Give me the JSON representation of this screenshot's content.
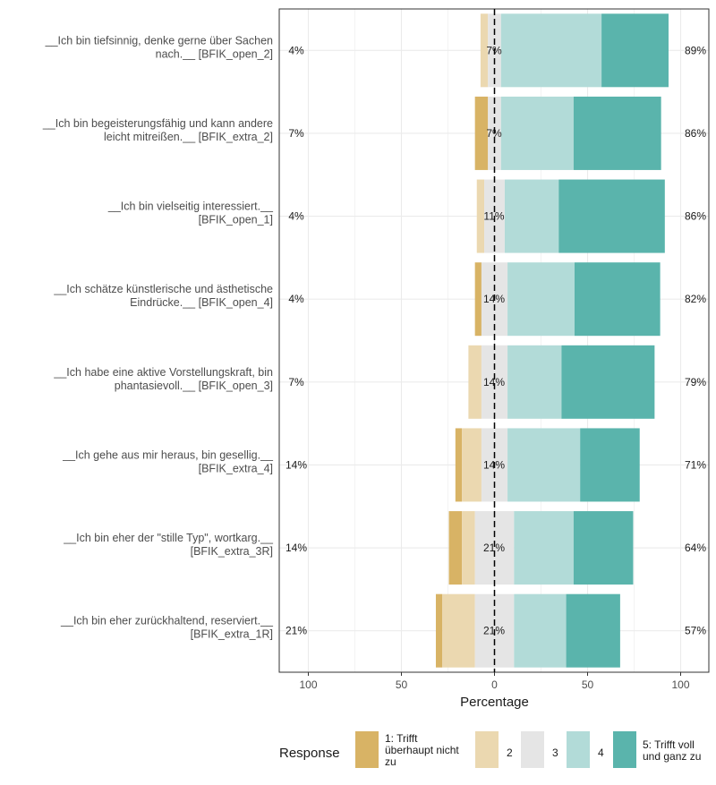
{
  "chart_data": {
    "type": "bar",
    "subtype": "diverging-stacked-likert",
    "xlabel": "Percentage",
    "xlim": [
      -115,
      115
    ],
    "x_ticks": [
      -100,
      -50,
      0,
      50,
      100
    ],
    "x_tick_labels": [
      "100",
      "50",
      "0",
      "50",
      "100"
    ],
    "grid": true,
    "legend": {
      "title": "Response",
      "position": "bottom",
      "levels": [
        {
          "label_lines": [
            "1: Trifft",
            "überhaupt nicht",
            "zu"
          ],
          "color": "#d8b365"
        },
        {
          "label_lines": [
            "2"
          ],
          "color": "#ebd8b0"
        },
        {
          "label_lines": [
            "3"
          ],
          "color": "#e5e5e5"
        },
        {
          "label_lines": [
            "4"
          ],
          "color": "#b2dbd8"
        },
        {
          "label_lines": [
            "5: Trifft voll",
            "und ganz zu"
          ],
          "color": "#5ab4ac"
        }
      ]
    },
    "items": [
      {
        "label_lines": [
          "__Ich bin tiefsinnig, denke gerne über Sachen",
          "nach.__ [BFIK_open_2]"
        ],
        "values": [
          0,
          4,
          7,
          54,
          36
        ],
        "low": "4%",
        "neutral": "7%",
        "high": "89%"
      },
      {
        "label_lines": [
          "__Ich bin begeisterungsfähig und kann andere",
          "leicht mitreißen.__ [BFIK_extra_2]"
        ],
        "values": [
          7,
          0,
          7,
          39,
          47
        ],
        "low": "7%",
        "neutral": "7%",
        "high": "86%"
      },
      {
        "label_lines": [
          "__Ich bin vielseitig interessiert.__",
          "[BFIK_open_1]"
        ],
        "values": [
          0,
          4,
          11,
          29,
          57
        ],
        "low": "4%",
        "neutral": "11%",
        "high": "86%"
      },
      {
        "label_lines": [
          "__Ich schätze künstlerische und ästhetische",
          "Eindrücke.__ [BFIK_open_4]"
        ],
        "values": [
          3.5,
          0,
          14,
          36,
          46
        ],
        "low": "4%",
        "neutral": "14%",
        "high": "82%"
      },
      {
        "label_lines": [
          "__Ich habe eine aktive Vorstellungskraft, bin",
          "phantasievoll.__ [BFIK_open_3]"
        ],
        "values": [
          0,
          7,
          14,
          29,
          50
        ],
        "low": "7%",
        "neutral": "14%",
        "high": "79%"
      },
      {
        "label_lines": [
          "__Ich gehe aus mir heraus, bin gesellig.__",
          "[BFIK_extra_4]"
        ],
        "values": [
          3.5,
          10.5,
          14,
          39,
          32
        ],
        "low": "14%",
        "neutral": "14%",
        "high": "71%"
      },
      {
        "label_lines": [
          "__Ich bin eher der \"stille Typ\", wortkarg.__",
          "[BFIK_extra_3R]"
        ],
        "values": [
          7,
          7,
          21,
          32,
          32
        ],
        "low": "14%",
        "neutral": "21%",
        "high": "64%"
      },
      {
        "label_lines": [
          "__Ich bin eher zurückhaltend, reserviert.__",
          "[BFIK_extra_1R]"
        ],
        "values": [
          3.5,
          17.5,
          21,
          28,
          29
        ],
        "low": "21%",
        "neutral": "21%",
        "high": "57%"
      }
    ]
  }
}
